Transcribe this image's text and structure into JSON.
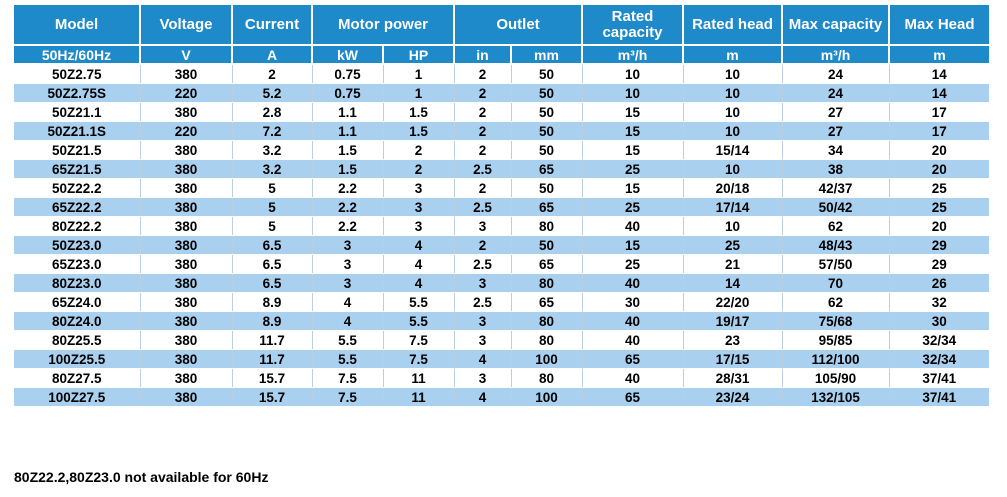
{
  "header": {
    "model_label": "Model",
    "freq_label": "50Hz/60Hz",
    "voltage_label": "Voltage",
    "voltage_unit": "V",
    "current_label": "Current",
    "current_unit": "A",
    "motor_power_label": "Motor power",
    "motor_kw_unit": "kW",
    "motor_hp_unit": "HP",
    "outlet_label": "Outlet",
    "outlet_in_unit": "in",
    "outlet_mm_unit": "mm",
    "rated_capacity_label": "Rated capacity",
    "rated_capacity_unit": "m³/h",
    "rated_head_label": "Rated head",
    "rated_head_unit": "m",
    "max_capacity_label": "Max capacity",
    "max_capacity_unit": "m³/h",
    "max_head_label": "Max Head",
    "max_head_unit": "m"
  },
  "rows": [
    [
      "50Z2.75",
      "380",
      "2",
      "0.75",
      "1",
      "2",
      "50",
      "10",
      "10",
      "24",
      "14"
    ],
    [
      "50Z2.75S",
      "220",
      "5.2",
      "0.75",
      "1",
      "2",
      "50",
      "10",
      "10",
      "24",
      "14"
    ],
    [
      "50Z21.1",
      "380",
      "2.8",
      "1.1",
      "1.5",
      "2",
      "50",
      "15",
      "10",
      "27",
      "17"
    ],
    [
      "50Z21.1S",
      "220",
      "7.2",
      "1.1",
      "1.5",
      "2",
      "50",
      "15",
      "10",
      "27",
      "17"
    ],
    [
      "50Z21.5",
      "380",
      "3.2",
      "1.5",
      "2",
      "2",
      "50",
      "15",
      "15/14",
      "34",
      "20"
    ],
    [
      "65Z21.5",
      "380",
      "3.2",
      "1.5",
      "2",
      "2.5",
      "65",
      "25",
      "10",
      "38",
      "20"
    ],
    [
      "50Z22.2",
      "380",
      "5",
      "2.2",
      "3",
      "2",
      "50",
      "15",
      "20/18",
      "42/37",
      "25"
    ],
    [
      "65Z22.2",
      "380",
      "5",
      "2.2",
      "3",
      "2.5",
      "65",
      "25",
      "17/14",
      "50/42",
      "25"
    ],
    [
      "80Z22.2",
      "380",
      "5",
      "2.2",
      "3",
      "3",
      "80",
      "40",
      "10",
      "62",
      "20"
    ],
    [
      "50Z23.0",
      "380",
      "6.5",
      "3",
      "4",
      "2",
      "50",
      "15",
      "25",
      "48/43",
      "29"
    ],
    [
      "65Z23.0",
      "380",
      "6.5",
      "3",
      "4",
      "2.5",
      "65",
      "25",
      "21",
      "57/50",
      "29"
    ],
    [
      "80Z23.0",
      "380",
      "6.5",
      "3",
      "4",
      "3",
      "80",
      "40",
      "14",
      "70",
      "26"
    ],
    [
      "65Z24.0",
      "380",
      "8.9",
      "4",
      "5.5",
      "2.5",
      "65",
      "30",
      "22/20",
      "62",
      "32"
    ],
    [
      "80Z24.0",
      "380",
      "8.9",
      "4",
      "5.5",
      "3",
      "80",
      "40",
      "19/17",
      "75/68",
      "30"
    ],
    [
      "80Z25.5",
      "380",
      "11.7",
      "5.5",
      "7.5",
      "3",
      "80",
      "40",
      "23",
      "95/85",
      "32/34"
    ],
    [
      "100Z25.5",
      "380",
      "11.7",
      "5.5",
      "7.5",
      "4",
      "100",
      "65",
      "17/15",
      "112/100",
      "32/34"
    ],
    [
      "80Z27.5",
      "380",
      "15.7",
      "7.5",
      "11",
      "3",
      "80",
      "40",
      "28/31",
      "105/90",
      "37/41"
    ],
    [
      "100Z27.5",
      "380",
      "15.7",
      "7.5",
      "11",
      "4",
      "100",
      "65",
      "23/24",
      "132/105",
      "37/41"
    ]
  ],
  "footnote": "80Z22.2,80Z23.0 not available for 60Hz",
  "colors": {
    "header_bg": "#1f8ac9",
    "stripe_bg": "#a9d1ef"
  }
}
